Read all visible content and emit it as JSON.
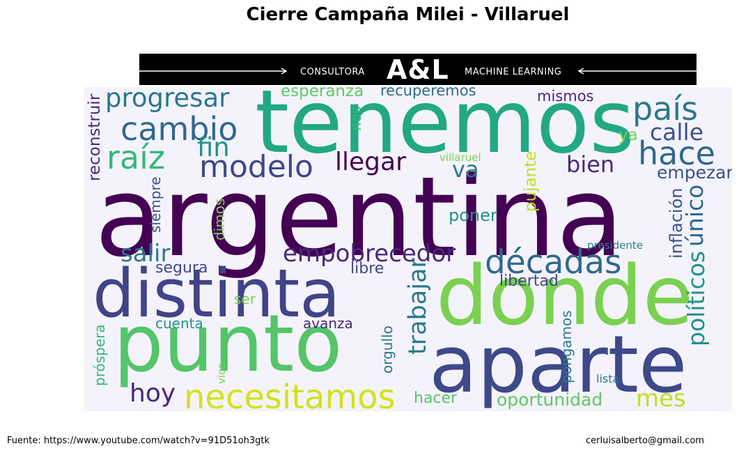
{
  "title": "Cierre Campaña Milei - Villaruel",
  "banner": {
    "logo": "A&L",
    "left_label": "CONSULTORA",
    "right_label": "MACHINE LEARNING"
  },
  "cloud_words": [
    {
      "text": "argentina",
      "color": "#440154"
    },
    {
      "text": "tenemos",
      "color": "#22a884"
    },
    {
      "text": "donde",
      "color": "#7ad151"
    },
    {
      "text": "distinta",
      "color": "#414487"
    },
    {
      "text": "punto",
      "color": "#54c568"
    },
    {
      "text": "aparte",
      "color": "#3e4989"
    },
    {
      "text": "país",
      "color": "#2a788e"
    },
    {
      "text": "progresar",
      "color": "#2a788e"
    },
    {
      "text": "cambio",
      "color": "#31688e"
    },
    {
      "text": "hace",
      "color": "#31688e"
    },
    {
      "text": "calle",
      "color": "#3b528b"
    },
    {
      "text": "raíz",
      "color": "#35b779"
    },
    {
      "text": "fin",
      "color": "#21918c"
    },
    {
      "text": "modelo",
      "color": "#3e4989"
    },
    {
      "text": "llegar",
      "color": "#440154"
    },
    {
      "text": "va",
      "color": "#2a788e"
    },
    {
      "text": "bien",
      "color": "#482878"
    },
    {
      "text": "empezar",
      "color": "#3b528b"
    },
    {
      "text": "esperanza",
      "color": "#5ec962"
    },
    {
      "text": "recuperemos",
      "color": "#31688e"
    },
    {
      "text": "mismos",
      "color": "#482878"
    },
    {
      "text": "nos",
      "color": "#35b779"
    },
    {
      "text": "ya",
      "color": "#7ad151"
    },
    {
      "text": "villaruel",
      "color": "#7ad151"
    },
    {
      "text": "reconstruir",
      "color": "#482878"
    },
    {
      "text": "pujante",
      "color": "#bddf26"
    },
    {
      "text": "siempre",
      "color": "#3b528b"
    },
    {
      "text": "dimos",
      "color": "#7ad151"
    },
    {
      "text": "poner",
      "color": "#21918c"
    },
    {
      "text": "único",
      "color": "#31688e"
    },
    {
      "text": "inflación",
      "color": "#3b528b"
    },
    {
      "text": "salir",
      "color": "#2a788e"
    },
    {
      "text": "empobrecedor",
      "color": "#482878"
    },
    {
      "text": "décadas",
      "color": "#31688e"
    },
    {
      "text": "presidente",
      "color": "#26828e"
    },
    {
      "text": "segura",
      "color": "#3e4989"
    },
    {
      "text": "libre",
      "color": "#3e4989"
    },
    {
      "text": "libertad",
      "color": "#414487"
    },
    {
      "text": "políticos",
      "color": "#21918c"
    },
    {
      "text": "trabajar",
      "color": "#2a788e"
    },
    {
      "text": "ser",
      "color": "#7ad151"
    },
    {
      "text": "cuenta",
      "color": "#21918c"
    },
    {
      "text": "avanza",
      "color": "#482878"
    },
    {
      "text": "próspera",
      "color": "#35b779"
    },
    {
      "text": "orgullo",
      "color": "#2a788e"
    },
    {
      "text": "pongamos",
      "color": "#2a788e"
    },
    {
      "text": "vice",
      "color": "#7ad151"
    },
    {
      "text": "lista",
      "color": "#2a788e"
    },
    {
      "text": "hoy",
      "color": "#482878"
    },
    {
      "text": "necesitamos",
      "color": "#d2e21b"
    },
    {
      "text": "hacer",
      "color": "#54c568"
    },
    {
      "text": "oportunidad",
      "color": "#5ec962"
    },
    {
      "text": "mes",
      "color": "#bddf26"
    }
  ],
  "footer": {
    "source": "Fuente: https://www.youtube.com/watch?v=91D51oh3gtk",
    "email": "cerluisalberto@gmail.com"
  }
}
